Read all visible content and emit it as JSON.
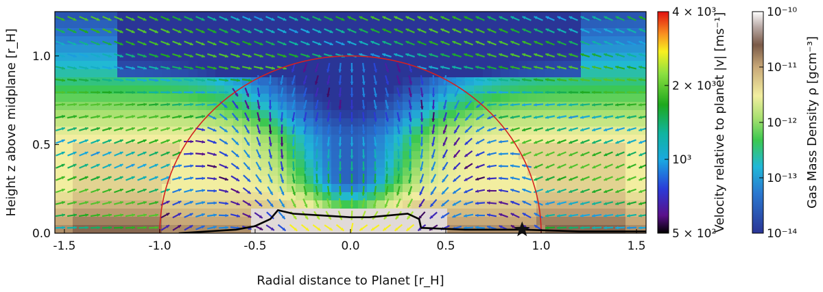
{
  "chart_data": {
    "type": "heatmap",
    "title": "",
    "xlabel": "Radial distance to Planet [r_H]",
    "ylabel": "Height z above midplane [r_H]",
    "xlim": [
      -1.55,
      1.55
    ],
    "ylim": [
      0.0,
      1.25
    ],
    "xticks": [
      "-1.5",
      "-1.0",
      "-0.5",
      "0.0",
      "0.5",
      "1.0",
      "1.5"
    ],
    "yticks": [
      "0.0",
      "0.5",
      "1.0"
    ],
    "grid": false,
    "hill_circle": {
      "center": [
        0.0,
        0.0
      ],
      "radius": 1.0,
      "color": "#d42020"
    },
    "marker": {
      "symbol": "star",
      "x": 0.9,
      "y": 0.02
    },
    "density_contour": [
      [
        -0.9,
        0.0
      ],
      [
        -0.6,
        0.02
      ],
      [
        -0.5,
        0.04
      ],
      [
        -0.42,
        0.08
      ],
      [
        -0.38,
        0.13
      ],
      [
        -0.3,
        0.11
      ],
      [
        -0.15,
        0.1
      ],
      [
        0.0,
        0.09
      ],
      [
        0.1,
        0.09
      ],
      [
        0.2,
        0.1
      ],
      [
        0.3,
        0.11
      ],
      [
        0.36,
        0.08
      ],
      [
        0.37,
        0.03
      ],
      [
        0.6,
        0.02
      ],
      [
        0.9,
        0.02
      ],
      [
        1.2,
        0.01
      ],
      [
        1.55,
        0.01
      ]
    ],
    "colorbars": [
      {
        "label": "Velocity relative to planet |v| [ms⁻¹]",
        "scale": "log",
        "range": [
          500,
          4000
        ],
        "ticks": [
          "4 × 10³",
          "2 × 10³",
          "10³",
          "5 × 10²"
        ],
        "tick_values": [
          4000,
          2000,
          1000,
          500
        ]
      },
      {
        "label": "Gas Mass Density ρ [gcm⁻³]",
        "scale": "log",
        "range": [
          1e-14,
          1e-10
        ],
        "ticks": [
          "10⁻¹⁰",
          "10⁻¹¹",
          "10⁻¹²",
          "10⁻¹³",
          "10⁻¹⁴"
        ],
        "tick_values": [
          1e-10,
          1e-11,
          1e-12,
          1e-13,
          1e-14
        ]
      }
    ]
  }
}
